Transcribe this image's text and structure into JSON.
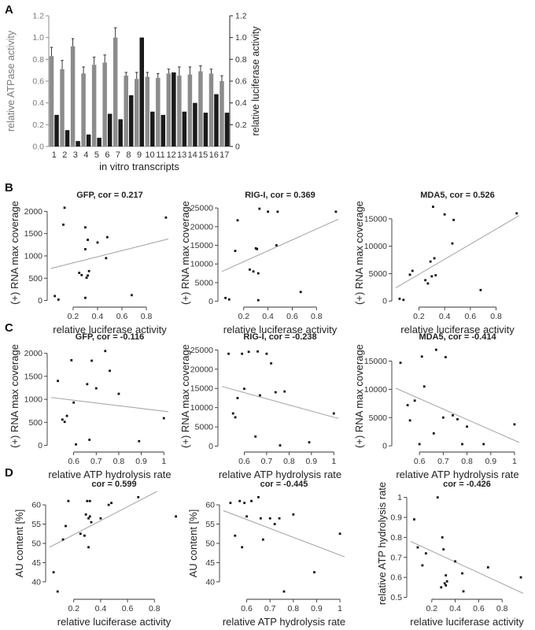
{
  "panel_labels": {
    "a": "A",
    "b": "B",
    "c": "C",
    "d": "D"
  },
  "chart_data": [
    {
      "id": "A",
      "type": "bar",
      "title": "",
      "xlabel": "in vitro transcripts",
      "ylabel": "relative ATPase activity",
      "y2label": "relative luciferase activity",
      "ylim": [
        0,
        1.2
      ],
      "yticks": [
        "0.0",
        "0.2",
        "0.4",
        "0.6",
        "0.8",
        "1.0",
        "1.2"
      ],
      "y2ticks": [
        "0",
        "0.2",
        "0.4",
        "0.6",
        "0.8",
        "1.0",
        "1.2"
      ],
      "categories": [
        "1",
        "2",
        "3",
        "4",
        "5",
        "6",
        "7",
        "8",
        "9",
        "10",
        "11",
        "12",
        "13",
        "14",
        "15",
        "16",
        "17"
      ],
      "series": [
        {
          "name": "relative ATPase activity",
          "color": "#8c8c8c",
          "values": [
            0.83,
            0.71,
            0.92,
            0.67,
            0.75,
            0.77,
            1.0,
            0.65,
            0.62,
            0.64,
            0.63,
            0.67,
            0.65,
            0.66,
            0.69,
            0.67,
            0.6
          ],
          "errors": [
            0.08,
            0.08,
            0.07,
            0.06,
            0.07,
            0.07,
            0.09,
            0.03,
            0.06,
            0.04,
            0.04,
            0.04,
            0.08,
            0.07,
            0.05,
            0.04,
            0.05
          ]
        },
        {
          "name": "relative luciferase activity",
          "color": "#1a1a1a",
          "values": [
            0.29,
            0.15,
            0.05,
            0.11,
            0.08,
            0.3,
            0.25,
            0.47,
            1.0,
            0.32,
            0.29,
            0.68,
            0.32,
            0.4,
            0.31,
            0.48,
            0.31
          ]
        }
      ]
    },
    {
      "id": "B1",
      "type": "scatter",
      "title": "GFP, cor = 0.217",
      "xlabel": "relative luciferase activity",
      "ylabel": "(+) RNA max coverage",
      "xlim": [
        0.02,
        0.98
      ],
      "ylim": [
        -60,
        2200
      ],
      "xticks": [
        0.2,
        0.4,
        0.6,
        0.8
      ],
      "yticks": [
        0,
        500,
        1000,
        1500,
        2000
      ],
      "x": [
        0.05,
        0.08,
        0.12,
        0.13,
        0.25,
        0.27,
        0.3,
        0.3,
        0.3,
        0.31,
        0.32,
        0.32,
        0.33,
        0.4,
        0.47,
        0.48,
        0.68,
        0.96
      ],
      "y": [
        100,
        20,
        1700,
        2080,
        620,
        570,
        1150,
        1640,
        60,
        510,
        1360,
        560,
        660,
        1300,
        950,
        1420,
        120,
        1860
      ],
      "trend": {
        "x": [
          0.02,
          0.98
        ],
        "y": [
          720,
          1380
        ]
      }
    },
    {
      "id": "B2",
      "type": "scatter",
      "title": "RIG-I, cor = 0.369",
      "xlabel": "relative luciferase activity",
      "ylabel": "(+) RNA max coverage",
      "xlim": [
        0.02,
        0.98
      ],
      "ylim": [
        -500,
        26500
      ],
      "xticks": [
        0.2,
        0.4,
        0.6,
        0.8
      ],
      "yticks": [
        0,
        5000,
        10000,
        15000,
        20000,
        25000
      ],
      "x": [
        0.05,
        0.08,
        0.13,
        0.15,
        0.25,
        0.28,
        0.3,
        0.31,
        0.32,
        0.32,
        0.33,
        0.4,
        0.47,
        0.48,
        0.67,
        0.96
      ],
      "y": [
        900,
        500,
        13500,
        21700,
        8500,
        8000,
        14200,
        14000,
        7500,
        300,
        24800,
        24000,
        15000,
        24000,
        2500,
        24000
      ],
      "trend": {
        "x": [
          0.02,
          0.98
        ],
        "y": [
          8000,
          22000
        ]
      }
    },
    {
      "id": "B3",
      "type": "scatter",
      "title": "MDA5, cor = 0.526",
      "xlabel": "relative luciferase activity",
      "ylabel": "(+) RNA max coverage",
      "xlim": [
        0.02,
        0.98
      ],
      "ylim": [
        -400,
        18000
      ],
      "xticks": [
        0.2,
        0.4,
        0.6,
        0.8
      ],
      "yticks": [
        0,
        5000,
        10000,
        15000
      ],
      "x": [
        0.05,
        0.08,
        0.13,
        0.15,
        0.25,
        0.27,
        0.29,
        0.3,
        0.31,
        0.32,
        0.33,
        0.4,
        0.46,
        0.47,
        0.68,
        0.96
      ],
      "y": [
        400,
        200,
        4800,
        5500,
        3800,
        3200,
        7200,
        4500,
        17200,
        7800,
        4700,
        15800,
        10500,
        14800,
        2000,
        16000
      ],
      "trend": {
        "x": [
          0.02,
          0.98
        ],
        "y": [
          2400,
          15600
        ]
      }
    },
    {
      "id": "C1",
      "type": "scatter",
      "title": "GFP, cor = -0.116",
      "xlabel": "relative ATP hydrolysis rate",
      "ylabel": "(+) RNA max coverage",
      "xlim": [
        0.5,
        1.02
      ],
      "ylim": [
        -60,
        2200
      ],
      "xticks": [
        0.6,
        0.7,
        0.8,
        0.9,
        1.0
      ],
      "yticks": [
        0,
        500,
        1000,
        1500,
        2000
      ],
      "x": [
        0.53,
        0.55,
        0.56,
        0.57,
        0.59,
        0.6,
        0.61,
        0.66,
        0.67,
        0.68,
        0.7,
        0.74,
        0.76,
        0.8,
        0.89,
        1.0
      ],
      "y": [
        1400,
        560,
        510,
        640,
        1850,
        930,
        20,
        1330,
        120,
        1840,
        1240,
        2050,
        1620,
        1120,
        90,
        590
      ],
      "trend": {
        "x": [
          0.5,
          1.02
        ],
        "y": [
          1040,
          730
        ]
      }
    },
    {
      "id": "C2",
      "type": "scatter",
      "title": "RIG-I, cor = -0.238",
      "xlabel": "relative ATP hydrolysis rate",
      "ylabel": "(+) RNA max coverage",
      "xlim": [
        0.5,
        1.02
      ],
      "ylim": [
        -500,
        26500
      ],
      "xticks": [
        0.6,
        0.7,
        0.8,
        0.9,
        1.0
      ],
      "yticks": [
        0,
        5000,
        10000,
        15000,
        20000,
        25000
      ],
      "x": [
        0.53,
        0.55,
        0.56,
        0.57,
        0.59,
        0.6,
        0.62,
        0.65,
        0.66,
        0.67,
        0.7,
        0.72,
        0.74,
        0.76,
        0.78,
        0.89,
        1.0
      ],
      "y": [
        24000,
        8500,
        7500,
        12500,
        24000,
        14900,
        24500,
        2500,
        24600,
        13200,
        24000,
        21500,
        14000,
        200,
        14200,
        1000,
        8500
      ],
      "trend": {
        "x": [
          0.5,
          1.02
        ],
        "y": [
          15500,
          7200
        ]
      }
    },
    {
      "id": "C3",
      "type": "scatter",
      "title": "MDA5, cor = -0.414",
      "xlabel": "relative ATP hydrolysis rate",
      "ylabel": "(+) RNA max coverage",
      "xlim": [
        0.5,
        1.02
      ],
      "ylim": [
        -400,
        18000
      ],
      "xticks": [
        0.6,
        0.7,
        0.8,
        0.9,
        1.0
      ],
      "yticks": [
        0,
        5000,
        10000,
        15000
      ],
      "x": [
        0.52,
        0.55,
        0.56,
        0.58,
        0.6,
        0.61,
        0.62,
        0.66,
        0.67,
        0.7,
        0.71,
        0.74,
        0.76,
        0.78,
        0.8,
        0.87,
        1.0
      ],
      "y": [
        14700,
        7200,
        4500,
        8000,
        300,
        15800,
        10500,
        2200,
        17000,
        5000,
        15700,
        5400,
        4700,
        300,
        3400,
        300,
        3800
      ],
      "trend": {
        "x": [
          0.5,
          1.02
        ],
        "y": [
          10200,
          600
        ]
      }
    },
    {
      "id": "D1",
      "type": "scatter",
      "title": "cor = 0.599",
      "xlabel": "relative luciferase activity",
      "ylabel": "AU content [%]",
      "xlim": [
        0.02,
        0.98
      ],
      "ylim": [
        36.5,
        63.5
      ],
      "xticks": [
        0.2,
        0.4,
        0.6,
        0.8
      ],
      "yticks": [
        40,
        45,
        50,
        55,
        60
      ],
      "x": [
        0.05,
        0.08,
        0.12,
        0.14,
        0.16,
        0.25,
        0.28,
        0.29,
        0.3,
        0.31,
        0.31,
        0.32,
        0.32,
        0.33,
        0.4,
        0.46,
        0.48,
        0.68,
        0.96
      ],
      "y": [
        42.5,
        37.5,
        51.0,
        54.5,
        61.0,
        52.5,
        52.0,
        57.5,
        61.0,
        56.5,
        49.0,
        57.0,
        61.0,
        55.5,
        56.5,
        60.0,
        60.5,
        62.0,
        57.0
      ],
      "trend": {
        "x": [
          0.02,
          0.82
        ],
        "y": [
          49.0,
          63.5
        ]
      }
    },
    {
      "id": "D2",
      "type": "scatter",
      "title": "cor = -0.445",
      "xlabel": "relative ATP hydrolysis rate",
      "ylabel": "AU content [%]",
      "xlim": [
        0.5,
        1.02
      ],
      "ylim": [
        36.5,
        63.5
      ],
      "xticks": [
        0.6,
        0.7,
        0.8,
        0.9,
        1.0
      ],
      "yticks": [
        40,
        45,
        50,
        55,
        60
      ],
      "x": [
        0.53,
        0.55,
        0.57,
        0.58,
        0.59,
        0.6,
        0.62,
        0.65,
        0.66,
        0.67,
        0.7,
        0.72,
        0.74,
        0.76,
        0.8,
        0.89,
        1.0
      ],
      "y": [
        60.5,
        52.0,
        61.0,
        49.0,
        60.5,
        57.0,
        61.0,
        62.0,
        56.5,
        51.0,
        56.5,
        55.0,
        56.5,
        37.5,
        57.5,
        42.5,
        52.5
      ],
      "trend": {
        "x": [
          0.5,
          1.02
        ],
        "y": [
          58.5,
          46.5
        ]
      }
    },
    {
      "id": "D3",
      "type": "scatter",
      "title": "cor = -0.426",
      "xlabel": "relative luciferase activity",
      "ylabel": "relative ATP hydrolysis rate",
      "xlim": [
        0.02,
        0.98
      ],
      "ylim": [
        0.51,
        1.03
      ],
      "xticks": [
        0.2,
        0.4,
        0.6,
        0.8
      ],
      "yticks": [
        0.5,
        0.6,
        0.7,
        0.8,
        0.9,
        1.0
      ],
      "x": [
        0.05,
        0.08,
        0.12,
        0.15,
        0.25,
        0.28,
        0.29,
        0.3,
        0.31,
        0.32,
        0.32,
        0.33,
        0.4,
        0.46,
        0.47,
        0.68,
        0.96
      ],
      "y": [
        0.89,
        0.75,
        0.66,
        0.72,
        1.0,
        0.55,
        0.8,
        0.74,
        0.57,
        0.61,
        0.56,
        0.58,
        0.68,
        0.62,
        0.53,
        0.65,
        0.6
      ],
      "trend": {
        "x": [
          0.02,
          0.98
        ],
        "y": [
          0.78,
          0.52
        ]
      }
    }
  ]
}
